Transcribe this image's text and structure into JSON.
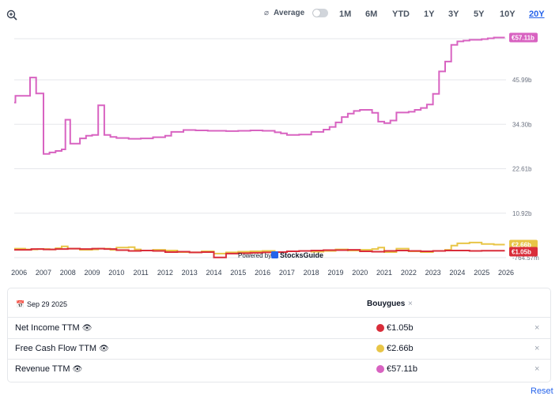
{
  "toolbar": {
    "average_label": "Average",
    "average_symbol": "⌀",
    "ranges": [
      "1M",
      "6M",
      "YTD",
      "1Y",
      "3Y",
      "5Y",
      "10Y",
      "20Y"
    ],
    "active_range": "20Y",
    "zoom_icon": "zoom-in-icon"
  },
  "watermark": {
    "prefix": "Powered by",
    "brand": "StocksGuide"
  },
  "chart_data": {
    "type": "line",
    "step": true,
    "x_ticks": [
      "2006",
      "2007",
      "2008",
      "2009",
      "2010",
      "2011",
      "2012",
      "2013",
      "2014",
      "2015",
      "2016",
      "2017",
      "2018",
      "2019",
      "2020",
      "2021",
      "2022",
      "2023",
      "2024",
      "2025",
      "2026"
    ],
    "y_ticks": [
      "45.99b",
      "34.30b",
      "22.61b",
      "10.92b",
      "-764.57m"
    ],
    "ylim": [
      -0.76457,
      57.84
    ],
    "grid": true,
    "series": [
      {
        "name": "Revenue TTM",
        "color": "#d863c1",
        "end_label": "€57.11b",
        "points": [
          [
            2005.8,
            40.0
          ],
          [
            2005.85,
            41.8
          ],
          [
            2006.45,
            46.6
          ],
          [
            2006.7,
            42.4
          ],
          [
            2007.0,
            26.5
          ],
          [
            2007.25,
            26.9
          ],
          [
            2007.5,
            27.3
          ],
          [
            2007.75,
            27.7
          ],
          [
            2007.9,
            35.5
          ],
          [
            2008.1,
            29.2
          ],
          [
            2008.5,
            30.6
          ],
          [
            2008.75,
            31.3
          ],
          [
            2009.0,
            31.5
          ],
          [
            2009.25,
            39.3
          ],
          [
            2009.5,
            31.5
          ],
          [
            2009.75,
            31.0
          ],
          [
            2010.0,
            30.7
          ],
          [
            2010.5,
            30.5
          ],
          [
            2011.0,
            30.6
          ],
          [
            2011.5,
            30.9
          ],
          [
            2012.0,
            31.3
          ],
          [
            2012.25,
            32.3
          ],
          [
            2012.75,
            32.8
          ],
          [
            2013.25,
            32.7
          ],
          [
            2013.75,
            32.6
          ],
          [
            2014.5,
            32.5
          ],
          [
            2015.0,
            32.6
          ],
          [
            2015.5,
            32.7
          ],
          [
            2016.0,
            32.6
          ],
          [
            2016.5,
            32.2
          ],
          [
            2016.75,
            31.9
          ],
          [
            2017.0,
            31.5
          ],
          [
            2017.5,
            31.6
          ],
          [
            2018.0,
            32.3
          ],
          [
            2018.5,
            32.9
          ],
          [
            2018.75,
            33.6
          ],
          [
            2019.0,
            34.8
          ],
          [
            2019.25,
            36.2
          ],
          [
            2019.5,
            37.1
          ],
          [
            2019.75,
            37.8
          ],
          [
            2020.0,
            38.1
          ],
          [
            2020.5,
            37.3
          ],
          [
            2020.75,
            35.0
          ],
          [
            2021.0,
            34.6
          ],
          [
            2021.25,
            35.3
          ],
          [
            2021.5,
            37.4
          ],
          [
            2022.0,
            37.6
          ],
          [
            2022.25,
            38.1
          ],
          [
            2022.5,
            38.6
          ],
          [
            2022.75,
            39.5
          ],
          [
            2023.0,
            42.3
          ],
          [
            2023.25,
            48.2
          ],
          [
            2023.5,
            50.8
          ],
          [
            2023.75,
            55.2
          ],
          [
            2024.0,
            56.1
          ],
          [
            2024.25,
            56.3
          ],
          [
            2024.5,
            56.5
          ],
          [
            2025.0,
            56.7
          ],
          [
            2025.25,
            56.9
          ],
          [
            2025.5,
            57.11
          ],
          [
            2025.95,
            57.11
          ]
        ]
      },
      {
        "name": "Free Cash Flow TTM",
        "color": "#e8c547",
        "end_label": "€2.66b",
        "points": [
          [
            2005.8,
            1.6
          ],
          [
            2006.25,
            1.4
          ],
          [
            2006.75,
            1.5
          ],
          [
            2007.25,
            1.4
          ],
          [
            2007.5,
            1.7
          ],
          [
            2007.75,
            2.2
          ],
          [
            2008.0,
            1.6
          ],
          [
            2008.5,
            1.3
          ],
          [
            2009.0,
            1.4
          ],
          [
            2009.25,
            1.6
          ],
          [
            2009.75,
            1.3
          ],
          [
            2010.0,
            1.9
          ],
          [
            2010.5,
            2.0
          ],
          [
            2010.75,
            1.4
          ],
          [
            2011.0,
            1.1
          ],
          [
            2011.5,
            1.3
          ],
          [
            2012.0,
            1.1
          ],
          [
            2012.5,
            0.7
          ],
          [
            2013.0,
            0.6
          ],
          [
            2013.5,
            0.9
          ],
          [
            2014.0,
            0.3
          ],
          [
            2014.5,
            0.6
          ],
          [
            2015.0,
            0.8
          ],
          [
            2015.5,
            0.9
          ],
          [
            2016.0,
            1.0
          ],
          [
            2016.5,
            0.7
          ],
          [
            2017.0,
            0.9
          ],
          [
            2017.5,
            1.0
          ],
          [
            2018.0,
            0.8
          ],
          [
            2018.5,
            1.0
          ],
          [
            2019.0,
            1.4
          ],
          [
            2019.5,
            1.1
          ],
          [
            2020.0,
            1.3
          ],
          [
            2020.5,
            1.5
          ],
          [
            2020.75,
            1.9
          ],
          [
            2021.0,
            0.7
          ],
          [
            2021.5,
            1.6
          ],
          [
            2022.0,
            0.9
          ],
          [
            2022.5,
            0.7
          ],
          [
            2023.0,
            1.0
          ],
          [
            2023.5,
            1.3
          ],
          [
            2023.75,
            2.4
          ],
          [
            2024.0,
            3.0
          ],
          [
            2024.5,
            3.2
          ],
          [
            2025.0,
            2.8
          ],
          [
            2025.5,
            2.66
          ],
          [
            2025.95,
            2.66
          ]
        ]
      },
      {
        "name": "Net Income TTM",
        "color": "#d92d3a",
        "end_label": "€1.05b",
        "points": [
          [
            2005.8,
            1.3
          ],
          [
            2006.5,
            1.5
          ],
          [
            2007.0,
            1.4
          ],
          [
            2007.5,
            1.5
          ],
          [
            2008.0,
            1.6
          ],
          [
            2008.5,
            1.5
          ],
          [
            2009.0,
            1.6
          ],
          [
            2009.5,
            1.5
          ],
          [
            2010.0,
            1.2
          ],
          [
            2010.5,
            1.0
          ],
          [
            2011.0,
            1.1
          ],
          [
            2011.5,
            1.0
          ],
          [
            2012.0,
            0.7
          ],
          [
            2012.5,
            0.8
          ],
          [
            2013.0,
            0.6
          ],
          [
            2013.5,
            0.7
          ],
          [
            2014.0,
            -0.7
          ],
          [
            2014.5,
            0.3
          ],
          [
            2015.0,
            0.4
          ],
          [
            2015.5,
            0.5
          ],
          [
            2016.0,
            0.6
          ],
          [
            2016.5,
            0.7
          ],
          [
            2017.0,
            0.9
          ],
          [
            2017.5,
            1.0
          ],
          [
            2018.0,
            1.1
          ],
          [
            2018.5,
            1.2
          ],
          [
            2019.0,
            1.2
          ],
          [
            2019.5,
            1.3
          ],
          [
            2020.0,
            0.9
          ],
          [
            2020.5,
            0.8
          ],
          [
            2021.0,
            1.0
          ],
          [
            2021.5,
            1.1
          ],
          [
            2022.0,
            1.0
          ],
          [
            2022.5,
            0.9
          ],
          [
            2023.0,
            1.0
          ],
          [
            2023.5,
            1.1
          ],
          [
            2024.0,
            1.1
          ],
          [
            2024.5,
            1.0
          ],
          [
            2025.0,
            1.05
          ],
          [
            2025.95,
            1.05
          ]
        ]
      }
    ]
  },
  "legend": {
    "date": "Sep 29 2025",
    "calendar_icon": "calendar-icon",
    "company": "Bouygues",
    "company_close": "×",
    "rows": [
      {
        "label": "Net Income TTM",
        "value": "€1.05b",
        "color": "#d92d3a",
        "close": "×"
      },
      {
        "label": "Free Cash Flow TTM",
        "value": "€2.66b",
        "color": "#e8c547",
        "close": "×"
      },
      {
        "label": "Revenue TTM",
        "value": "€57.11b",
        "color": "#d863c1",
        "close": "×"
      }
    ]
  },
  "reset_label": "Reset"
}
